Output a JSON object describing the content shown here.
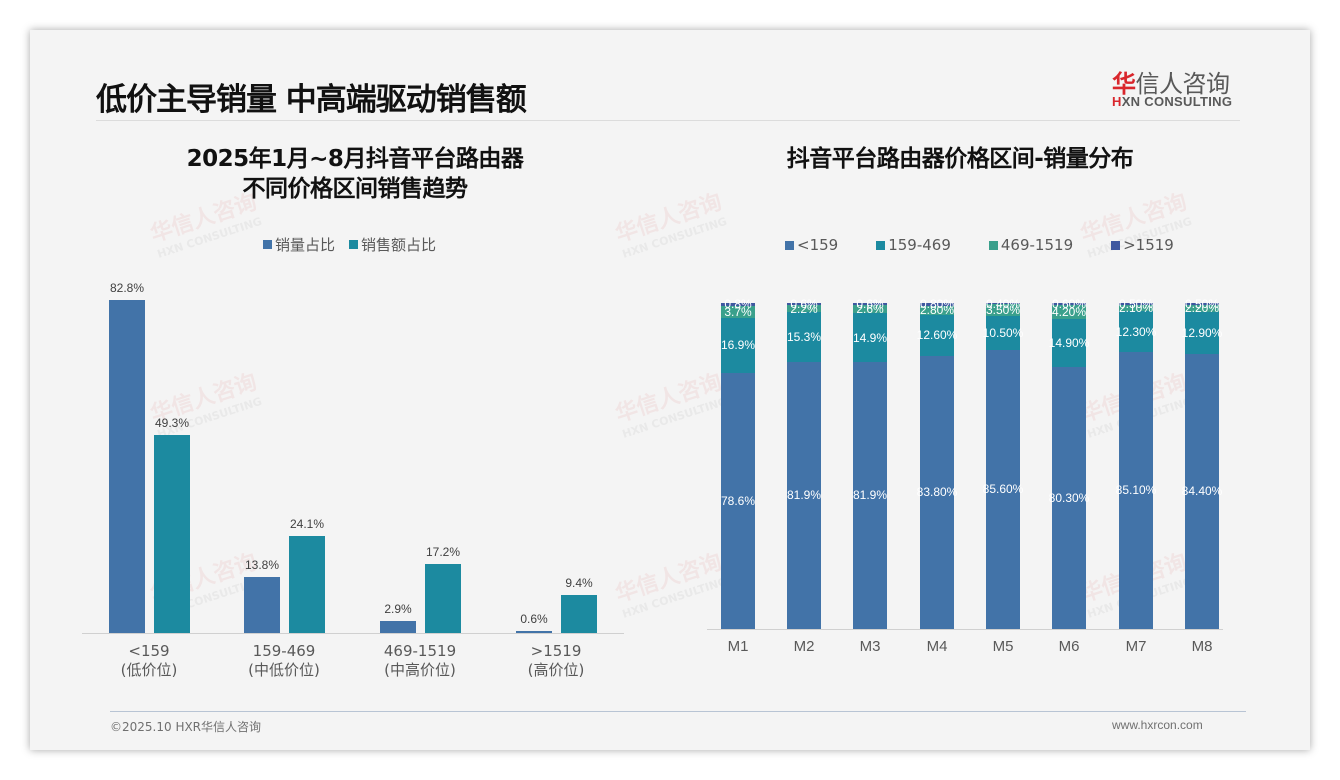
{
  "header": {
    "title": "低价主导销量 中高端驱动销售额",
    "logo_cn_red": "华",
    "logo_cn_rest": "信人咨询",
    "logo_en_red": "H",
    "logo_en_rest": "XN CONSULTING"
  },
  "watermark": {
    "cn": "华信人咨询",
    "en": "HXN CONSULTING"
  },
  "left_chart": {
    "title_line1": "2025年1月~8月抖音平台路由器",
    "title_line2": "不同价格区间销售趋势"
  },
  "right_chart": {
    "title": "抖音平台路由器价格区间-销量分布"
  },
  "footer": {
    "copyright": "©2025.10 HXR华信人咨询",
    "website": "www.hxrcon.com"
  },
  "colors": {
    "blue": "#4273a8",
    "teal": "#1c8aa0",
    "green": "#3aa08c",
    "navy": "#3f58a0",
    "logo_red": "#d9262c"
  },
  "chart_data": [
    {
      "type": "bar",
      "title": "2025年1月~8月抖音平台路由器 不同价格区间销售趋势",
      "categories": [
        "<159",
        "159-469",
        "469-1519",
        ">1519"
      ],
      "category_sublabels": [
        "(低价位)",
        "(中低价位)",
        "(中高价位)",
        "(高价位)"
      ],
      "series": [
        {
          "name": "销量占比",
          "values": [
            82.8,
            13.8,
            2.9,
            0.6
          ],
          "labels": [
            "82.8%",
            "13.8%",
            "2.9%",
            "0.6%"
          ]
        },
        {
          "name": "销售额占比",
          "values": [
            49.3,
            24.1,
            17.2,
            9.4
          ],
          "labels": [
            "49.3%",
            "24.1%",
            "17.2%",
            "9.4%"
          ]
        }
      ],
      "xlabel": "",
      "ylabel": "",
      "ylim": [
        0,
        100
      ],
      "grid": false,
      "legend_position": "top"
    },
    {
      "type": "bar",
      "stacked": true,
      "title": "抖音平台路由器价格区间-销量分布",
      "categories": [
        "M1",
        "M2",
        "M3",
        "M4",
        "M5",
        "M6",
        "M7",
        "M8"
      ],
      "series": [
        {
          "name": "<159",
          "values": [
            78.6,
            81.9,
            81.9,
            83.8,
            85.6,
            80.3,
            85.1,
            84.4
          ],
          "labels": [
            "78.6%",
            "81.9%",
            "81.9%",
            "83.80%",
            "85.60%",
            "80.30%",
            "85.10%",
            "84.40%"
          ]
        },
        {
          "name": "159-469",
          "values": [
            16.9,
            15.3,
            14.9,
            12.6,
            10.5,
            14.9,
            12.3,
            12.9
          ],
          "labels": [
            "16.9%",
            "15.3%",
            "14.9%",
            "12.60%",
            "10.50%",
            "14.90%",
            "12.30%",
            "12.90%"
          ]
        },
        {
          "name": "469-1519",
          "values": [
            3.7,
            2.2,
            2.6,
            2.8,
            3.5,
            4.2,
            2.1,
            2.2
          ],
          "labels": [
            "3.7%",
            "2.2%",
            "2.6%",
            "2.80%",
            "3.50%",
            "4.20%",
            "2.10%",
            "2.20%"
          ]
        },
        {
          "name": ">1519",
          "values": [
            0.8,
            0.6,
            0.6,
            0.8,
            0.4,
            0.6,
            0.5,
            0.5
          ],
          "labels": [
            "0.8%",
            "0.6%",
            "0.6%",
            "0.80%",
            "0.40%",
            "0.60%",
            "0.50%",
            "0.50%"
          ]
        }
      ],
      "xlabel": "",
      "ylabel": "",
      "ylim": [
        0,
        100
      ],
      "grid": false,
      "legend_position": "top"
    }
  ]
}
